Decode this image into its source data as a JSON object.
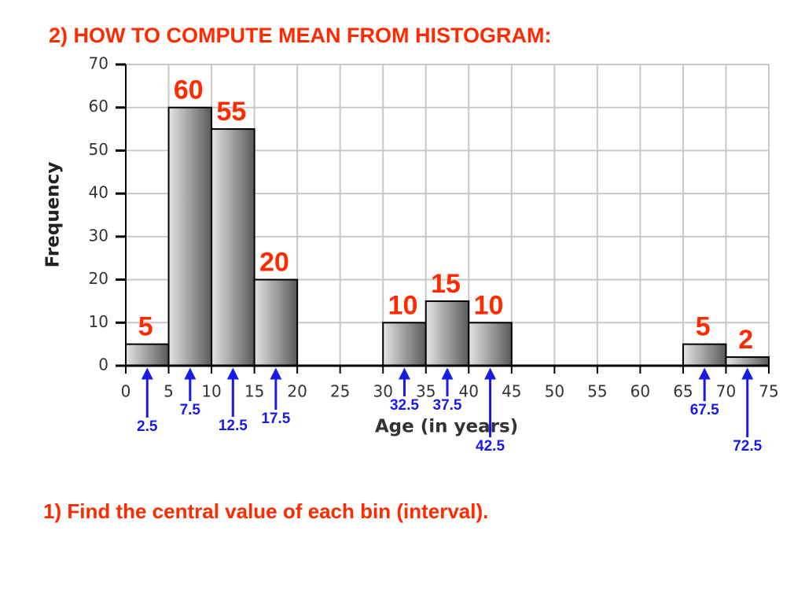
{
  "chart_data": {
    "type": "histogram",
    "title": "2)  HOW TO COMPUTE MEAN FROM HISTOGRAM:",
    "note": "1) Find the central value of each bin (interval).",
    "xlabel": "Age (in years)",
    "ylabel": "Frequency",
    "bins": [
      0,
      5,
      10,
      15,
      20,
      25,
      30,
      35,
      40,
      45,
      50,
      55,
      60,
      65,
      70,
      75
    ],
    "values": [
      5,
      60,
      55,
      20,
      0,
      0,
      10,
      15,
      10,
      0,
      0,
      0,
      0,
      5,
      2
    ],
    "midpoints": [
      2.5,
      7.5,
      12.5,
      17.5,
      32.5,
      37.5,
      42.5,
      67.5,
      72.5
    ],
    "xlim": [
      0,
      75
    ],
    "xticks": [
      0,
      5,
      10,
      15,
      20,
      25,
      30,
      35,
      40,
      45,
      50,
      55,
      60,
      65,
      70,
      75
    ],
    "ylim": [
      0,
      70
    ],
    "yticks": [
      0,
      10,
      20,
      30,
      40,
      50,
      60,
      70
    ],
    "grid": true
  }
}
